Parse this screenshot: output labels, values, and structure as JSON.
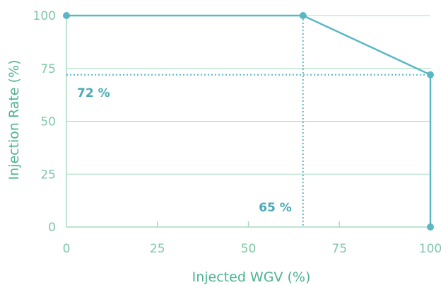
{
  "chart_data": {
    "type": "line",
    "title": "",
    "xlabel": "Injected WGV (%)",
    "ylabel": "Injection Rate (%)",
    "xlim": [
      0,
      100
    ],
    "ylim": [
      0,
      100
    ],
    "xticks": [
      0,
      25,
      50,
      75,
      100
    ],
    "yticks": [
      0,
      25,
      50,
      75,
      100
    ],
    "x_tick_labels": [
      "0",
      "25",
      "50",
      "75",
      "100"
    ],
    "y_tick_labels": [
      "0",
      "25",
      "50",
      "75",
      "100"
    ],
    "grid": "horizontal",
    "series": [
      {
        "x": [
          0,
          65,
          100,
          100
        ],
        "y": [
          100,
          100,
          72,
          0
        ]
      }
    ],
    "reference_lines": [
      {
        "axis": "x",
        "value": 65,
        "label": "65 %"
      },
      {
        "axis": "y",
        "value": 72,
        "label": "72 %"
      }
    ],
    "colors": {
      "line": "#5ab8c4",
      "grid": "#a8dbc4",
      "axis": "#a8dbc4",
      "tick_text": "#7fc7a8",
      "axis_title": "#4fb38f",
      "annotation": "#4aa9b7"
    }
  }
}
